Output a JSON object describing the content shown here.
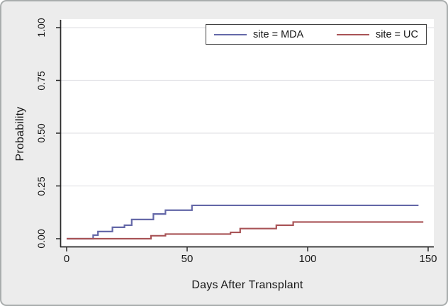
{
  "figure": {
    "background": "#ececec",
    "plot_background": "#ffffff",
    "outer_border_color": "#a9adad",
    "axis_color": "#2a2a2a",
    "gridline_color": "#e4e4e8",
    "legend_border_color": "#3d3d3d"
  },
  "chart_data": {
    "type": "line",
    "line_style": "step-after",
    "title": "",
    "xlabel": "Days After Transplant",
    "ylabel": "Probability",
    "xlim": [
      0,
      150
    ],
    "ylim": [
      0,
      1
    ],
    "xticks": [
      0,
      50,
      100,
      150
    ],
    "ytick_labels": [
      "0.00",
      "0.25",
      "0.50",
      "0.75",
      "1.00"
    ],
    "grid": "horizontal",
    "legend_position": "top-right-inside",
    "series": [
      {
        "name": "site = MDA",
        "color": "#6468a8",
        "points": [
          [
            0,
            0
          ],
          [
            11,
            0.017
          ],
          [
            13,
            0.034
          ],
          [
            19,
            0.054
          ],
          [
            24,
            0.064
          ],
          [
            27,
            0.091
          ],
          [
            36,
            0.117
          ],
          [
            41,
            0.135
          ],
          [
            52,
            0.158
          ],
          [
            146,
            0.158
          ]
        ]
      },
      {
        "name": "site = UC",
        "color": "#a85356",
        "points": [
          [
            0,
            0
          ],
          [
            35,
            0.014
          ],
          [
            41,
            0.022
          ],
          [
            68,
            0.03
          ],
          [
            72,
            0.048
          ],
          [
            87,
            0.064
          ],
          [
            94,
            0.079
          ],
          [
            148,
            0.079
          ]
        ]
      }
    ]
  }
}
